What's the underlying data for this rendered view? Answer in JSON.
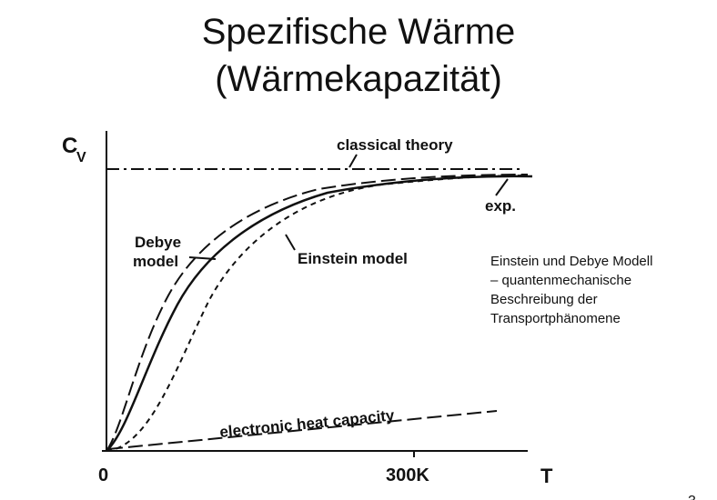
{
  "slide": {
    "title_line1": "Spezifische Wärme",
    "title_line2": "(Wärmekapazität)",
    "description": [
      "Einstein und Debye Modell",
      "– quantenmechanische",
      "Beschreibung der",
      "Transportphänomene"
    ],
    "page_number": "3"
  },
  "chart_data": {
    "type": "line",
    "title": "",
    "ylabel_main": "C",
    "ylabel_sub": "V",
    "xlabel": "T",
    "x_ticks": [
      "0",
      "300K"
    ],
    "series": [
      {
        "name": "classical theory",
        "style": "dash-dot"
      },
      {
        "name": "exp.",
        "style": "solid"
      },
      {
        "name": "Debye model",
        "style": "long-dash"
      },
      {
        "name": "Einstein model",
        "style": "short-dash"
      },
      {
        "name": "electronic heat capacity",
        "style": "long-dash"
      }
    ],
    "labels": {
      "classical": "classical theory",
      "exp": "exp.",
      "debye_line1": "Debye",
      "debye_line2": "model",
      "einstein": "Einstein model",
      "electronic": "electronic heat capacity"
    }
  }
}
